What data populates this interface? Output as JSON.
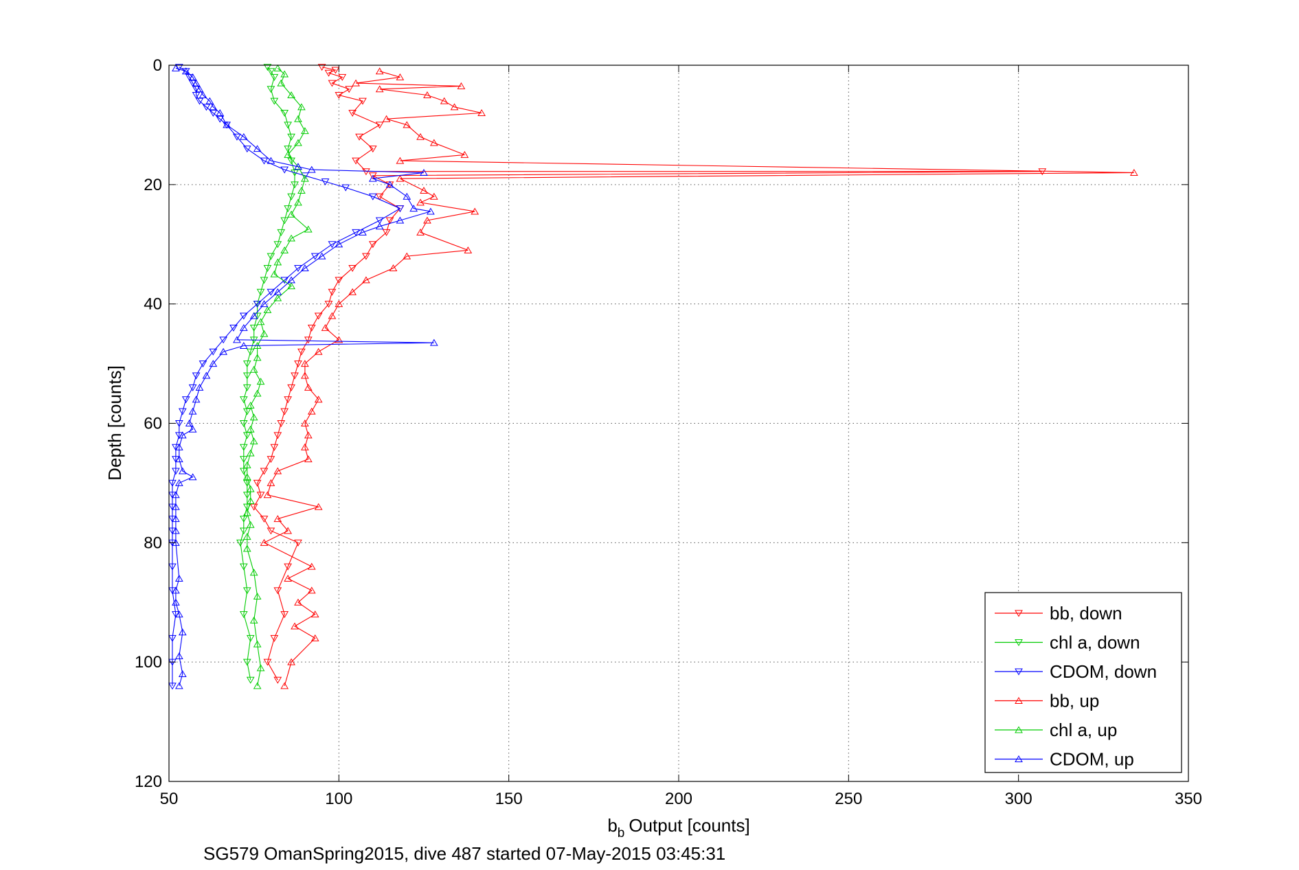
{
  "chart_data": {
    "type": "line",
    "xlabel": "Output [counts]",
    "xlabel_prefix": "b",
    "xlabel_subscript": "b",
    "ylabel": "Depth [counts]",
    "caption": "SG579 OmanSpring2015, dive 487 started 07-May-2015 03:45:31",
    "xlim": [
      50,
      350
    ],
    "ylim": [
      0,
      120
    ],
    "y_reversed": true,
    "grid": true,
    "legend_position": "bottom-right",
    "xticks": [
      "50",
      "100",
      "150",
      "200",
      "250",
      "300",
      "350"
    ],
    "yticks": [
      "0",
      "20",
      "40",
      "60",
      "80",
      "100",
      "120"
    ],
    "series": [
      {
        "name": "bb, down",
        "color": "#ff0000",
        "marker": "triangle-down",
        "points": [
          [
            95,
            0.3
          ],
          [
            99,
            0.8
          ],
          [
            97,
            1.3
          ],
          [
            101,
            2
          ],
          [
            98,
            3
          ],
          [
            103,
            4
          ],
          [
            100,
            5
          ],
          [
            107,
            6
          ],
          [
            104,
            8
          ],
          [
            112,
            10
          ],
          [
            106,
            12
          ],
          [
            110,
            14
          ],
          [
            105,
            16
          ],
          [
            108,
            17.8
          ],
          [
            307,
            17.8
          ],
          [
            110,
            18.5
          ],
          [
            115,
            20
          ],
          [
            112,
            22
          ],
          [
            118,
            24
          ],
          [
            115,
            26
          ],
          [
            114,
            28
          ],
          [
            110,
            30
          ],
          [
            108,
            32
          ],
          [
            104,
            34
          ],
          [
            100,
            36
          ],
          [
            98,
            38
          ],
          [
            97,
            40
          ],
          [
            94,
            42
          ],
          [
            92,
            44
          ],
          [
            91,
            46
          ],
          [
            89,
            48
          ],
          [
            88,
            50
          ],
          [
            87,
            52
          ],
          [
            86,
            54
          ],
          [
            85,
            56
          ],
          [
            84,
            58
          ],
          [
            83,
            60
          ],
          [
            82,
            62
          ],
          [
            81,
            64
          ],
          [
            80,
            66
          ],
          [
            78,
            68
          ],
          [
            76,
            70
          ],
          [
            77,
            72
          ],
          [
            75,
            74
          ],
          [
            78,
            76
          ],
          [
            80,
            78
          ],
          [
            88,
            80
          ],
          [
            85,
            84
          ],
          [
            82,
            88
          ],
          [
            84,
            92
          ],
          [
            81,
            96
          ],
          [
            79,
            100
          ],
          [
            82,
            103
          ]
        ]
      },
      {
        "name": "chl a, down",
        "color": "#00cc00",
        "marker": "triangle-down",
        "points": [
          [
            79,
            0.3
          ],
          [
            80,
            1
          ],
          [
            81,
            2
          ],
          [
            80,
            4
          ],
          [
            81,
            6
          ],
          [
            84,
            8
          ],
          [
            85,
            10
          ],
          [
            86,
            12
          ],
          [
            85,
            14
          ],
          [
            86,
            16
          ],
          [
            87,
            18
          ],
          [
            87,
            20
          ],
          [
            86,
            22
          ],
          [
            85,
            24
          ],
          [
            84,
            26
          ],
          [
            83,
            28
          ],
          [
            82,
            30
          ],
          [
            80,
            32
          ],
          [
            79,
            34
          ],
          [
            78,
            36
          ],
          [
            77,
            38
          ],
          [
            76,
            40
          ],
          [
            76,
            42
          ],
          [
            75,
            44
          ],
          [
            75,
            46
          ],
          [
            74,
            48
          ],
          [
            73,
            50
          ],
          [
            73,
            52
          ],
          [
            73,
            54
          ],
          [
            72,
            56
          ],
          [
            73,
            58
          ],
          [
            72,
            60
          ],
          [
            73,
            62
          ],
          [
            72,
            64
          ],
          [
            72,
            66
          ],
          [
            72,
            68
          ],
          [
            73,
            70
          ],
          [
            73,
            72
          ],
          [
            73,
            74
          ],
          [
            72,
            76
          ],
          [
            72,
            78
          ],
          [
            71,
            80
          ],
          [
            72,
            84
          ],
          [
            73,
            88
          ],
          [
            72,
            92
          ],
          [
            74,
            96
          ],
          [
            73,
            100
          ],
          [
            74,
            103
          ]
        ]
      },
      {
        "name": "CDOM, down",
        "color": "#0000ff",
        "marker": "triangle-down",
        "points": [
          [
            53,
            0.3
          ],
          [
            55,
            1
          ],
          [
            56,
            2
          ],
          [
            57,
            3
          ],
          [
            58,
            4
          ],
          [
            58,
            5
          ],
          [
            59,
            6
          ],
          [
            61,
            7
          ],
          [
            63,
            8
          ],
          [
            65,
            9
          ],
          [
            67,
            10
          ],
          [
            70,
            12
          ],
          [
            73,
            14
          ],
          [
            78,
            16
          ],
          [
            84,
            17.5
          ],
          [
            90,
            18.5
          ],
          [
            96,
            19.5
          ],
          [
            102,
            20.5
          ],
          [
            110,
            22
          ],
          [
            118,
            24
          ],
          [
            112,
            26
          ],
          [
            105,
            28
          ],
          [
            98,
            30
          ],
          [
            93,
            32
          ],
          [
            88,
            34
          ],
          [
            84,
            36
          ],
          [
            80,
            38
          ],
          [
            76,
            40
          ],
          [
            72,
            42
          ],
          [
            69,
            44
          ],
          [
            66,
            46
          ],
          [
            63,
            48
          ],
          [
            60,
            50
          ],
          [
            58,
            52
          ],
          [
            57,
            54
          ],
          [
            55,
            56
          ],
          [
            54,
            58
          ],
          [
            53,
            60
          ],
          [
            53,
            62
          ],
          [
            52,
            64
          ],
          [
            52,
            66
          ],
          [
            52,
            68
          ],
          [
            51,
            70
          ],
          [
            51,
            72
          ],
          [
            51,
            74
          ],
          [
            51,
            76
          ],
          [
            51,
            78
          ],
          [
            51,
            80
          ],
          [
            51,
            84
          ],
          [
            51,
            88
          ],
          [
            52,
            92
          ],
          [
            51,
            96
          ],
          [
            51,
            100
          ],
          [
            51,
            104
          ]
        ]
      },
      {
        "name": "bb, up",
        "color": "#ff0000",
        "marker": "triangle-up",
        "points": [
          [
            112,
            1
          ],
          [
            118,
            2
          ],
          [
            105,
            3
          ],
          [
            136,
            3.5
          ],
          [
            112,
            4
          ],
          [
            126,
            5
          ],
          [
            131,
            6
          ],
          [
            134,
            7
          ],
          [
            142,
            8
          ],
          [
            114,
            9
          ],
          [
            120,
            10
          ],
          [
            124,
            12
          ],
          [
            128,
            13
          ],
          [
            137,
            15
          ],
          [
            118,
            16
          ],
          [
            334,
            18
          ],
          [
            118,
            19
          ],
          [
            125,
            21
          ],
          [
            128,
            22
          ],
          [
            124,
            23
          ],
          [
            140,
            24.5
          ],
          [
            126,
            26
          ],
          [
            124,
            28
          ],
          [
            138,
            31
          ],
          [
            120,
            32
          ],
          [
            116,
            34
          ],
          [
            108,
            36
          ],
          [
            104,
            38
          ],
          [
            100,
            40
          ],
          [
            98,
            42
          ],
          [
            96,
            44
          ],
          [
            100,
            46
          ],
          [
            94,
            48
          ],
          [
            90,
            50
          ],
          [
            90,
            52
          ],
          [
            91,
            54
          ],
          [
            94,
            56
          ],
          [
            92,
            58
          ],
          [
            90,
            60
          ],
          [
            91,
            62
          ],
          [
            90,
            64
          ],
          [
            91,
            66
          ],
          [
            82,
            68
          ],
          [
            80,
            70
          ],
          [
            79,
            72
          ],
          [
            94,
            74
          ],
          [
            82,
            76
          ],
          [
            85,
            78
          ],
          [
            78,
            80
          ],
          [
            92,
            84
          ],
          [
            85,
            86
          ],
          [
            92,
            88
          ],
          [
            88,
            90
          ],
          [
            93,
            92
          ],
          [
            87,
            94
          ],
          [
            93,
            96
          ],
          [
            86,
            100
          ],
          [
            84,
            104
          ]
        ]
      },
      {
        "name": "chl a, up",
        "color": "#00cc00",
        "marker": "triangle-up",
        "points": [
          [
            82,
            0.5
          ],
          [
            84,
            1.5
          ],
          [
            83,
            3
          ],
          [
            86,
            5
          ],
          [
            89,
            7
          ],
          [
            88,
            9
          ],
          [
            90,
            11
          ],
          [
            88,
            13
          ],
          [
            85,
            15
          ],
          [
            88,
            17
          ],
          [
            90,
            19
          ],
          [
            89,
            21
          ],
          [
            88,
            23
          ],
          [
            86,
            25
          ],
          [
            91,
            27.5
          ],
          [
            86,
            29
          ],
          [
            84,
            31
          ],
          [
            82,
            33
          ],
          [
            81,
            35
          ],
          [
            86,
            37
          ],
          [
            82,
            39
          ],
          [
            79,
            41
          ],
          [
            77,
            43
          ],
          [
            78,
            45
          ],
          [
            76,
            47
          ],
          [
            76,
            49
          ],
          [
            75,
            51
          ],
          [
            77,
            53
          ],
          [
            76,
            55
          ],
          [
            74,
            57
          ],
          [
            75,
            59
          ],
          [
            74,
            61
          ],
          [
            75,
            63
          ],
          [
            74,
            65
          ],
          [
            73,
            67
          ],
          [
            73,
            69
          ],
          [
            74,
            71
          ],
          [
            74,
            73
          ],
          [
            73,
            75
          ],
          [
            74,
            77
          ],
          [
            73,
            79
          ],
          [
            73,
            81
          ],
          [
            75,
            85
          ],
          [
            76,
            89
          ],
          [
            75,
            93
          ],
          [
            76,
            97
          ],
          [
            77,
            101
          ],
          [
            76,
            104
          ]
        ]
      },
      {
        "name": "CDOM, up",
        "color": "#0000ff",
        "marker": "triangle-up",
        "points": [
          [
            52,
            0.5
          ],
          [
            55,
            1
          ],
          [
            57,
            2
          ],
          [
            58,
            3
          ],
          [
            59,
            4
          ],
          [
            60,
            5
          ],
          [
            62,
            6
          ],
          [
            63,
            7
          ],
          [
            65,
            8
          ],
          [
            67,
            10
          ],
          [
            72,
            12
          ],
          [
            76,
            14
          ],
          [
            80,
            16
          ],
          [
            88,
            17
          ],
          [
            92,
            17.5
          ],
          [
            125,
            18
          ],
          [
            110,
            19
          ],
          [
            115,
            20
          ],
          [
            120,
            22
          ],
          [
            122,
            24
          ],
          [
            127,
            24.5
          ],
          [
            118,
            26
          ],
          [
            112,
            27
          ],
          [
            107,
            28
          ],
          [
            100,
            30
          ],
          [
            95,
            32
          ],
          [
            90,
            34
          ],
          [
            86,
            36
          ],
          [
            82,
            38
          ],
          [
            78,
            40
          ],
          [
            75,
            42
          ],
          [
            72,
            44
          ],
          [
            70,
            46
          ],
          [
            128,
            46.5
          ],
          [
            72,
            47
          ],
          [
            66,
            48
          ],
          [
            63,
            50
          ],
          [
            61,
            52
          ],
          [
            59,
            54
          ],
          [
            58,
            56
          ],
          [
            57,
            58
          ],
          [
            56,
            60
          ],
          [
            57,
            61
          ],
          [
            54,
            62
          ],
          [
            53,
            64
          ],
          [
            53,
            66
          ],
          [
            54,
            68
          ],
          [
            57,
            69
          ],
          [
            53,
            70
          ],
          [
            52,
            72
          ],
          [
            52,
            74
          ],
          [
            52,
            76
          ],
          [
            52,
            78
          ],
          [
            52,
            80
          ],
          [
            53,
            86
          ],
          [
            52,
            88
          ],
          [
            52,
            90
          ],
          [
            53,
            92
          ],
          [
            54,
            95
          ],
          [
            53,
            99
          ],
          [
            54,
            102
          ],
          [
            53,
            104
          ]
        ]
      }
    ]
  }
}
